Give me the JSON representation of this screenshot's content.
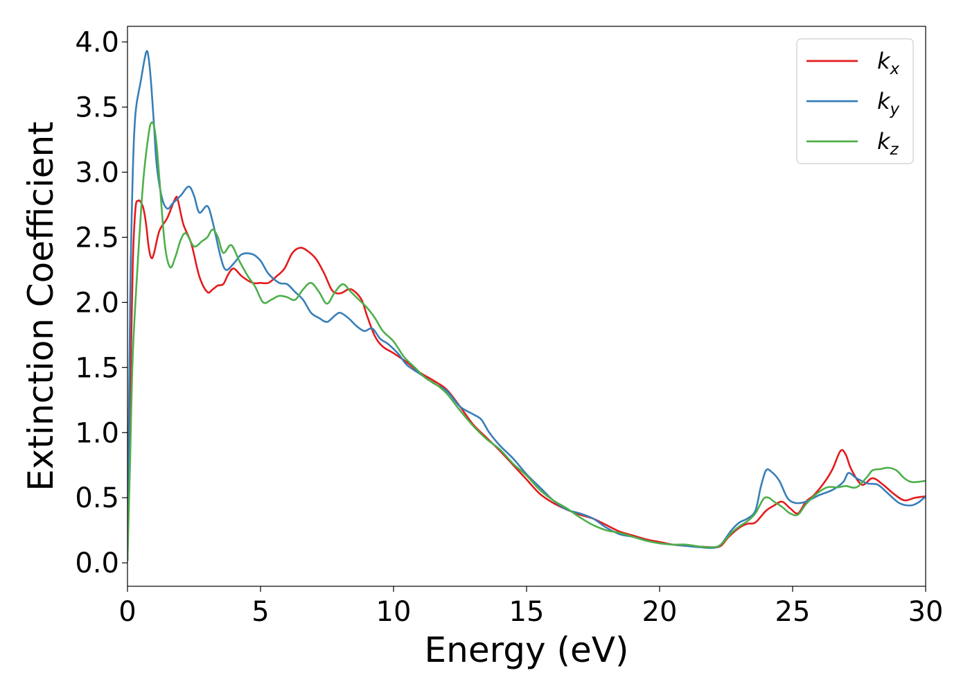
{
  "chart_data": {
    "type": "line",
    "xlabel": "Energy (eV)",
    "ylabel": "Extinction Coefficient",
    "xlim": [
      0,
      30
    ],
    "ylim": [
      -0.18,
      4.12
    ],
    "x_ticks": [
      0,
      5,
      10,
      15,
      20,
      25,
      30
    ],
    "x_tick_labels": [
      "0",
      "5",
      "10",
      "15",
      "20",
      "25",
      "30"
    ],
    "y_ticks": [
      0.0,
      0.5,
      1.0,
      1.5,
      2.0,
      2.5,
      3.0,
      3.5,
      4.0
    ],
    "y_tick_labels": [
      "0.0",
      "0.5",
      "1.0",
      "1.5",
      "2.0",
      "2.5",
      "3.0",
      "3.5",
      "4.0"
    ],
    "grid": false,
    "legend_position": "top-right",
    "series": [
      {
        "name": "k",
        "subscript": "x",
        "color": "#e41a1c",
        "points": [
          [
            0,
            0.02
          ],
          [
            0.1,
            1.3
          ],
          [
            0.2,
            2.3
          ],
          [
            0.3,
            2.72
          ],
          [
            0.4,
            2.78
          ],
          [
            0.5,
            2.77
          ],
          [
            0.6,
            2.72
          ],
          [
            0.7,
            2.6
          ],
          [
            0.8,
            2.42
          ],
          [
            0.9,
            2.34
          ],
          [
            1.0,
            2.38
          ],
          [
            1.2,
            2.55
          ],
          [
            1.5,
            2.65
          ],
          [
            1.8,
            2.8
          ],
          [
            1.9,
            2.78
          ],
          [
            2.1,
            2.6
          ],
          [
            2.4,
            2.45
          ],
          [
            2.7,
            2.2
          ],
          [
            3.0,
            2.08
          ],
          [
            3.2,
            2.1
          ],
          [
            3.4,
            2.13
          ],
          [
            3.6,
            2.14
          ],
          [
            3.8,
            2.22
          ],
          [
            4.0,
            2.26
          ],
          [
            4.3,
            2.2
          ],
          [
            4.7,
            2.15
          ],
          [
            5.0,
            2.15
          ],
          [
            5.3,
            2.15
          ],
          [
            5.6,
            2.2
          ],
          [
            5.9,
            2.26
          ],
          [
            6.2,
            2.38
          ],
          [
            6.5,
            2.42
          ],
          [
            6.8,
            2.39
          ],
          [
            7.1,
            2.33
          ],
          [
            7.4,
            2.22
          ],
          [
            7.7,
            2.09
          ],
          [
            8.0,
            2.07
          ],
          [
            8.3,
            2.1
          ],
          [
            8.5,
            2.09
          ],
          [
            8.8,
            2.02
          ],
          [
            9.0,
            1.9
          ],
          [
            9.3,
            1.74
          ],
          [
            9.6,
            1.66
          ],
          [
            10.0,
            1.61
          ],
          [
            10.5,
            1.54
          ],
          [
            11.0,
            1.46
          ],
          [
            11.5,
            1.4
          ],
          [
            12.0,
            1.33
          ],
          [
            12.5,
            1.2
          ],
          [
            13.0,
            1.06
          ],
          [
            13.5,
            0.96
          ],
          [
            14.0,
            0.86
          ],
          [
            14.5,
            0.75
          ],
          [
            15.0,
            0.64
          ],
          [
            15.5,
            0.53
          ],
          [
            16.0,
            0.46
          ],
          [
            16.5,
            0.41
          ],
          [
            17.0,
            0.37
          ],
          [
            17.5,
            0.34
          ],
          [
            18.0,
            0.29
          ],
          [
            18.5,
            0.24
          ],
          [
            19.0,
            0.21
          ],
          [
            19.5,
            0.18
          ],
          [
            20.0,
            0.16
          ],
          [
            20.5,
            0.14
          ],
          [
            21.0,
            0.13
          ],
          [
            21.5,
            0.125
          ],
          [
            22.0,
            0.12
          ],
          [
            22.3,
            0.13
          ],
          [
            22.6,
            0.2
          ],
          [
            23.0,
            0.27
          ],
          [
            23.3,
            0.3
          ],
          [
            23.6,
            0.31
          ],
          [
            24.0,
            0.4
          ],
          [
            24.3,
            0.44
          ],
          [
            24.6,
            0.47
          ],
          [
            24.9,
            0.42
          ],
          [
            25.2,
            0.38
          ],
          [
            25.5,
            0.47
          ],
          [
            25.8,
            0.52
          ],
          [
            26.2,
            0.62
          ],
          [
            26.5,
            0.72
          ],
          [
            26.8,
            0.86
          ],
          [
            27.0,
            0.83
          ],
          [
            27.2,
            0.72
          ],
          [
            27.6,
            0.6
          ],
          [
            28.0,
            0.65
          ],
          [
            28.4,
            0.6
          ],
          [
            28.8,
            0.53
          ],
          [
            29.2,
            0.48
          ],
          [
            29.6,
            0.5
          ],
          [
            30.0,
            0.51
          ]
        ]
      },
      {
        "name": "k",
        "subscript": "y",
        "color": "#377eb8",
        "points": [
          [
            0,
            0.02
          ],
          [
            0.1,
            2.0
          ],
          [
            0.2,
            3.0
          ],
          [
            0.3,
            3.45
          ],
          [
            0.5,
            3.7
          ],
          [
            0.7,
            3.92
          ],
          [
            0.8,
            3.87
          ],
          [
            0.9,
            3.65
          ],
          [
            1.0,
            3.35
          ],
          [
            1.1,
            3.05
          ],
          [
            1.3,
            2.8
          ],
          [
            1.5,
            2.72
          ],
          [
            1.7,
            2.76
          ],
          [
            2.0,
            2.82
          ],
          [
            2.3,
            2.89
          ],
          [
            2.5,
            2.82
          ],
          [
            2.7,
            2.69
          ],
          [
            3.0,
            2.74
          ],
          [
            3.2,
            2.62
          ],
          [
            3.5,
            2.35
          ],
          [
            3.7,
            2.25
          ],
          [
            4.0,
            2.3
          ],
          [
            4.3,
            2.37
          ],
          [
            4.7,
            2.37
          ],
          [
            5.0,
            2.32
          ],
          [
            5.3,
            2.22
          ],
          [
            5.7,
            2.15
          ],
          [
            6.0,
            2.14
          ],
          [
            6.3,
            2.08
          ],
          [
            6.6,
            2.02
          ],
          [
            6.9,
            1.92
          ],
          [
            7.2,
            1.88
          ],
          [
            7.5,
            1.85
          ],
          [
            7.8,
            1.9
          ],
          [
            8.0,
            1.92
          ],
          [
            8.3,
            1.88
          ],
          [
            8.6,
            1.82
          ],
          [
            8.9,
            1.78
          ],
          [
            9.2,
            1.8
          ],
          [
            9.5,
            1.72
          ],
          [
            9.8,
            1.68
          ],
          [
            10.2,
            1.6
          ],
          [
            10.5,
            1.52
          ],
          [
            11.0,
            1.45
          ],
          [
            11.5,
            1.38
          ],
          [
            12.0,
            1.32
          ],
          [
            12.5,
            1.2
          ],
          [
            13.0,
            1.14
          ],
          [
            13.3,
            1.1
          ],
          [
            13.6,
            1.0
          ],
          [
            14.0,
            0.9
          ],
          [
            14.5,
            0.8
          ],
          [
            15.0,
            0.68
          ],
          [
            15.5,
            0.58
          ],
          [
            16.0,
            0.48
          ],
          [
            16.5,
            0.41
          ],
          [
            17.0,
            0.38
          ],
          [
            17.5,
            0.34
          ],
          [
            18.0,
            0.27
          ],
          [
            18.5,
            0.22
          ],
          [
            19.0,
            0.2
          ],
          [
            19.5,
            0.17
          ],
          [
            20.0,
            0.15
          ],
          [
            20.5,
            0.14
          ],
          [
            21.0,
            0.13
          ],
          [
            21.5,
            0.12
          ],
          [
            22.0,
            0.115
          ],
          [
            22.3,
            0.14
          ],
          [
            22.7,
            0.25
          ],
          [
            23.0,
            0.31
          ],
          [
            23.3,
            0.34
          ],
          [
            23.6,
            0.4
          ],
          [
            23.8,
            0.58
          ],
          [
            24.0,
            0.71
          ],
          [
            24.2,
            0.7
          ],
          [
            24.5,
            0.63
          ],
          [
            24.8,
            0.5
          ],
          [
            25.1,
            0.46
          ],
          [
            25.5,
            0.47
          ],
          [
            26.0,
            0.52
          ],
          [
            26.5,
            0.56
          ],
          [
            26.9,
            0.62
          ],
          [
            27.1,
            0.69
          ],
          [
            27.4,
            0.65
          ],
          [
            27.8,
            0.61
          ],
          [
            28.2,
            0.6
          ],
          [
            28.6,
            0.53
          ],
          [
            29.0,
            0.46
          ],
          [
            29.4,
            0.44
          ],
          [
            29.7,
            0.46
          ],
          [
            30.0,
            0.51
          ]
        ]
      },
      {
        "name": "k",
        "subscript": "z",
        "color": "#4daf4a",
        "points": [
          [
            0,
            0.02
          ],
          [
            0.1,
            0.8
          ],
          [
            0.2,
            1.6
          ],
          [
            0.4,
            2.35
          ],
          [
            0.6,
            2.95
          ],
          [
            0.8,
            3.3
          ],
          [
            0.9,
            3.38
          ],
          [
            1.0,
            3.35
          ],
          [
            1.1,
            3.2
          ],
          [
            1.2,
            2.95
          ],
          [
            1.4,
            2.45
          ],
          [
            1.6,
            2.27
          ],
          [
            1.8,
            2.35
          ],
          [
            2.0,
            2.48
          ],
          [
            2.2,
            2.53
          ],
          [
            2.5,
            2.43
          ],
          [
            2.8,
            2.47
          ],
          [
            3.0,
            2.5
          ],
          [
            3.2,
            2.56
          ],
          [
            3.4,
            2.5
          ],
          [
            3.6,
            2.38
          ],
          [
            3.9,
            2.44
          ],
          [
            4.2,
            2.32
          ],
          [
            4.5,
            2.21
          ],
          [
            4.8,
            2.12
          ],
          [
            5.1,
            2.0
          ],
          [
            5.4,
            2.02
          ],
          [
            5.7,
            2.05
          ],
          [
            6.0,
            2.04
          ],
          [
            6.3,
            2.02
          ],
          [
            6.6,
            2.1
          ],
          [
            6.9,
            2.15
          ],
          [
            7.2,
            2.08
          ],
          [
            7.5,
            1.99
          ],
          [
            7.8,
            2.08
          ],
          [
            8.1,
            2.14
          ],
          [
            8.4,
            2.08
          ],
          [
            8.7,
            2.02
          ],
          [
            9.0,
            1.96
          ],
          [
            9.3,
            1.88
          ],
          [
            9.6,
            1.78
          ],
          [
            10.0,
            1.7
          ],
          [
            10.4,
            1.58
          ],
          [
            10.8,
            1.5
          ],
          [
            11.2,
            1.42
          ],
          [
            11.6,
            1.37
          ],
          [
            12.0,
            1.3
          ],
          [
            12.5,
            1.17
          ],
          [
            13.0,
            1.05
          ],
          [
            13.5,
            0.95
          ],
          [
            14.0,
            0.87
          ],
          [
            14.5,
            0.76
          ],
          [
            15.0,
            0.67
          ],
          [
            15.5,
            0.56
          ],
          [
            16.0,
            0.48
          ],
          [
            16.5,
            0.42
          ],
          [
            17.0,
            0.35
          ],
          [
            17.5,
            0.29
          ],
          [
            18.0,
            0.25
          ],
          [
            18.5,
            0.23
          ],
          [
            19.0,
            0.2
          ],
          [
            19.5,
            0.17
          ],
          [
            20.0,
            0.15
          ],
          [
            20.5,
            0.14
          ],
          [
            21.0,
            0.14
          ],
          [
            21.5,
            0.125
          ],
          [
            22.0,
            0.12
          ],
          [
            22.3,
            0.14
          ],
          [
            22.7,
            0.23
          ],
          [
            23.0,
            0.28
          ],
          [
            23.3,
            0.32
          ],
          [
            23.6,
            0.38
          ],
          [
            23.9,
            0.49
          ],
          [
            24.1,
            0.5
          ],
          [
            24.3,
            0.47
          ],
          [
            24.6,
            0.43
          ],
          [
            24.9,
            0.38
          ],
          [
            25.2,
            0.37
          ],
          [
            25.5,
            0.45
          ],
          [
            25.9,
            0.53
          ],
          [
            26.3,
            0.58
          ],
          [
            26.7,
            0.58
          ],
          [
            27.0,
            0.59
          ],
          [
            27.4,
            0.58
          ],
          [
            27.8,
            0.66
          ],
          [
            28.0,
            0.71
          ],
          [
            28.3,
            0.72
          ],
          [
            28.6,
            0.73
          ],
          [
            28.9,
            0.71
          ],
          [
            29.2,
            0.65
          ],
          [
            29.5,
            0.62
          ],
          [
            30.0,
            0.63
          ]
        ]
      }
    ]
  }
}
